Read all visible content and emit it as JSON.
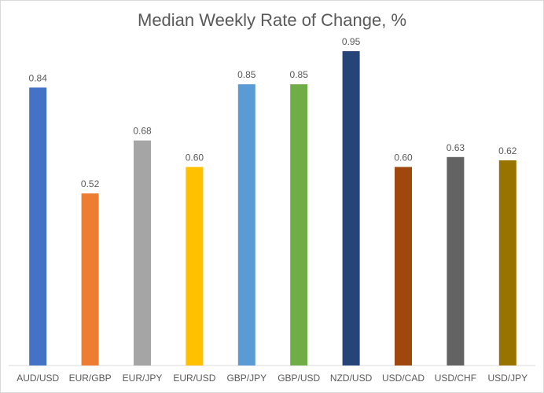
{
  "chart_data": {
    "type": "bar",
    "title": "Median Weekly Rate of Change, %",
    "categories": [
      "AUD/USD",
      "EUR/GBP",
      "EUR/JPY",
      "EUR/USD",
      "GBP/JPY",
      "GBP/USD",
      "NZD/USD",
      "USD/CAD",
      "USD/CHF",
      "USD/JPY"
    ],
    "values": [
      0.84,
      0.52,
      0.68,
      0.6,
      0.85,
      0.85,
      0.95,
      0.6,
      0.63,
      0.62
    ],
    "data_labels": [
      "0.84",
      "0.52",
      "0.68",
      "0.60",
      "0.85",
      "0.85",
      "0.95",
      "0.60",
      "0.63",
      "0.62"
    ],
    "colors": [
      "#4472C4",
      "#ED7D31",
      "#A5A5A5",
      "#FFC000",
      "#5B9BD5",
      "#70AD47",
      "#264478",
      "#9E480E",
      "#636363",
      "#997300"
    ],
    "ylim": [
      0,
      1
    ],
    "grid": false,
    "legend": false
  }
}
